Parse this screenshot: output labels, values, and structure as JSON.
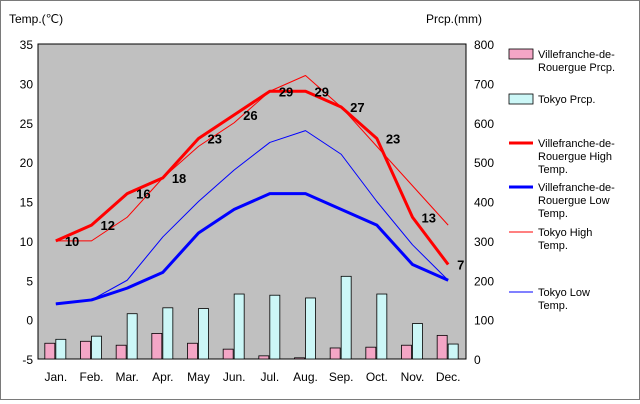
{
  "chart_data": {
    "type": "line",
    "left_axis": {
      "title": "Temp.(℃)",
      "min": -5,
      "max": 35,
      "step": 5
    },
    "right_axis": {
      "title": "Prcp.(mm)",
      "min": 0,
      "max": 800,
      "step": 100
    },
    "categories": [
      "Jan.",
      "Feb.",
      "Mar.",
      "Apr.",
      "May",
      "Jun.",
      "Jul.",
      "Aug.",
      "Sep.",
      "Oct.",
      "Nov.",
      "Dec."
    ],
    "bar_series": [
      {
        "name": "Villefranche-de-Rouergue Prcp.",
        "color": "#f4a6c6",
        "axis": "right",
        "values": [
          40,
          45,
          35,
          65,
          40,
          25,
          8,
          3,
          28,
          30,
          35,
          60
        ]
      },
      {
        "name": "Tokyo Prcp.",
        "color": "#ccf7f7",
        "axis": "right",
        "values": [
          50,
          58,
          115,
          130,
          128,
          165,
          162,
          155,
          210,
          165,
          90,
          38
        ]
      }
    ],
    "line_series": [
      {
        "name": "Villefranche-de-Rouergue High Temp.",
        "color": "#ff0000",
        "width": 3,
        "values": [
          10,
          12,
          16,
          18,
          23,
          26,
          29,
          29,
          27,
          23,
          13,
          7
        ],
        "show_labels": true
      },
      {
        "name": "Villefranche-de-Rouergue Low Temp.",
        "color": "#0000ff",
        "width": 3,
        "values": [
          2,
          2.5,
          4,
          6,
          11,
          14,
          16,
          16,
          14,
          12,
          7,
          5
        ]
      },
      {
        "name": "Tokyo High Temp.",
        "color": "#ff0000",
        "width": 1,
        "values": [
          10,
          10,
          13,
          18,
          22,
          25,
          29,
          31,
          27,
          22,
          17,
          12
        ]
      },
      {
        "name": "Tokyo Low Temp.",
        "color": "#0000ff",
        "width": 1,
        "values": [
          2,
          2.5,
          5,
          10.5,
          15,
          19,
          22.5,
          24,
          21,
          15,
          9.5,
          5
        ]
      }
    ],
    "legend_position": "right",
    "grid": false
  }
}
